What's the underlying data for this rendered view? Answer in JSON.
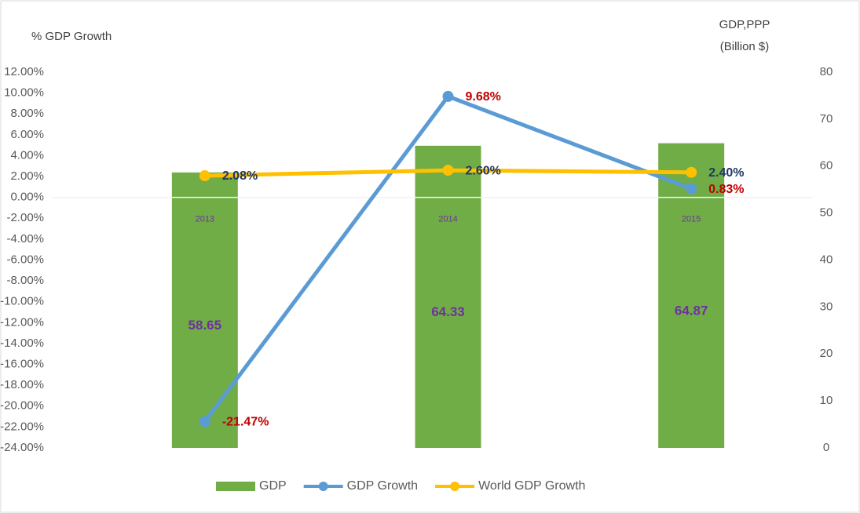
{
  "chart_data": {
    "type": "bar_line",
    "ylabel": "% GDP Growth",
    "y2label": [
      "GDP,PPP",
      "(Billion $)"
    ],
    "categories": [
      "2013",
      "2014",
      "2015"
    ],
    "ylim": [
      -24,
      12
    ],
    "yticks": [
      {
        "value": 12,
        "label": "12.00%"
      },
      {
        "value": 10,
        "label": "10.00%"
      },
      {
        "value": 8,
        "label": "8.00%"
      },
      {
        "value": 6,
        "label": "6.00%"
      },
      {
        "value": 4,
        "label": "4.00%"
      },
      {
        "value": 2,
        "label": "2.00%"
      },
      {
        "value": 0,
        "label": "0.00%"
      },
      {
        "value": -2,
        "label": "-2.00%"
      },
      {
        "value": -4,
        "label": "-4.00%"
      },
      {
        "value": -6,
        "label": "-6.00%"
      },
      {
        "value": -8,
        "label": "-8.00%"
      },
      {
        "value": -10,
        "label": "-10.00%"
      },
      {
        "value": -12,
        "label": "-12.00%"
      },
      {
        "value": -14,
        "label": "-14.00%"
      },
      {
        "value": -16,
        "label": "-16.00%"
      },
      {
        "value": -18,
        "label": "-18.00%"
      },
      {
        "value": -20,
        "label": "-20.00%"
      },
      {
        "value": -22,
        "label": "-22.00%"
      },
      {
        "value": -24,
        "label": "-24.00%"
      }
    ],
    "y2lim": [
      0,
      80
    ],
    "y2ticks": [
      0,
      10,
      20,
      30,
      40,
      50,
      60,
      70,
      80
    ],
    "series": [
      {
        "name": "GDP",
        "kind": "bar",
        "axis": "y2",
        "color": "#70ad47",
        "label_color": "#7030a0",
        "values": [
          58.65,
          64.33,
          64.87
        ]
      },
      {
        "name": "GDP Growth",
        "kind": "line",
        "color": "#5b9bd5",
        "label_color": "#c00000",
        "values": [
          -21.47,
          9.68,
          0.83
        ],
        "value_labels": [
          "-21.47%",
          "9.68%",
          "0.83%"
        ]
      },
      {
        "name": "World GDP Growth",
        "kind": "line",
        "color": "#ffc000",
        "label_color": "#1f3864",
        "values": [
          2.08,
          2.6,
          2.4
        ],
        "value_labels": [
          "2.08%",
          "2.60%",
          "2.40%"
        ]
      }
    ]
  }
}
